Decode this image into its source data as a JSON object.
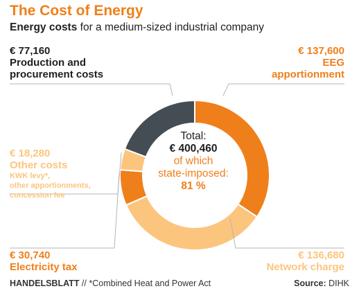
{
  "header": {
    "title": "The Cost of Energy",
    "subtitle_bold": "Energy costs",
    "subtitle_rest": " for a medium-sized industrial company"
  },
  "center": {
    "total_label": "Total:",
    "total_value": "€ 400,460",
    "state_label_1": "of which",
    "state_label_2": "state-imposed:",
    "state_value": "81 %"
  },
  "labels": {
    "production": {
      "value": "€ 77,160",
      "line1": "Production and",
      "line2": "procurement costs"
    },
    "eeg": {
      "value": "€ 137,600",
      "line1": "EEG",
      "line2": "apportionment"
    },
    "other": {
      "value": "€ 18,280",
      "line1": "Other costs",
      "note1": "KWK levy*,",
      "note2": "other apportionments,",
      "note3": "concession fee"
    },
    "electricity": {
      "value": "€ 30,740",
      "line1": "Electricity tax"
    },
    "network": {
      "value": "€ 136,680",
      "line1": "Network charge"
    }
  },
  "footer": {
    "brand": "HANDELSBLATT",
    "separator": " // ",
    "note": "*Combined Heat and Power Act",
    "source_label": "Source:",
    "source_value": " DIHK"
  },
  "colors": {
    "dark": "#454d54",
    "orange": "#ef7f1a",
    "light": "#fcc57e",
    "text_dark": "#1f1f1f"
  },
  "chart_data": {
    "type": "pie",
    "title": "The Cost of Energy",
    "categories": [
      "EEG apportionment",
      "Network charge",
      "Electricity tax",
      "Other costs",
      "Production and procurement costs"
    ],
    "values": [
      137600,
      136680,
      30740,
      18280,
      77160
    ],
    "slice_colors": [
      "#ef7f1a",
      "#fcc57e",
      "#ef7f1a",
      "#fcc57e",
      "#454d54"
    ],
    "total": 400460
  }
}
